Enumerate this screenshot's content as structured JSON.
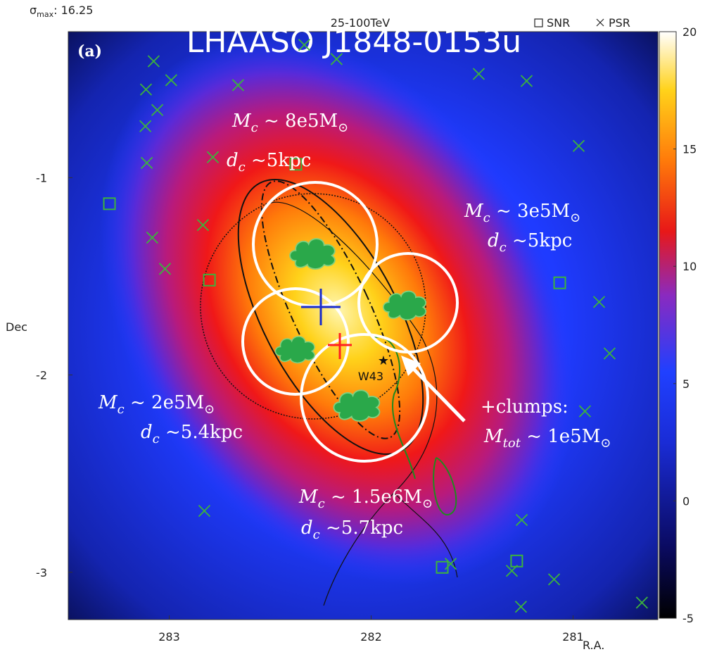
{
  "chart_data": {
    "type": "scatter",
    "title": "LHAASO J1848-0153u",
    "subtitle": "25-100TeV",
    "sigma_label": [
      "σ",
      "max",
      ": 16.25"
    ],
    "panel_label": "(a)",
    "x_label": "R.A.",
    "y_label": "Dec",
    "xlim": [
      283.5,
      280.58
    ],
    "ylim": [
      -3.24,
      -0.26
    ],
    "xticks": [
      283,
      282,
      281
    ],
    "yticks": [
      -1,
      -2,
      -3
    ],
    "legend": "upper right",
    "colorbar": {
      "lim": [
        -5,
        20
      ],
      "ticks": [
        -5,
        0,
        5,
        10,
        15,
        20
      ]
    },
    "series": [
      {
        "name": "SNR",
        "marker": "square",
        "color": "#3cb43c",
        "x": [
          283.296,
          282.801,
          282.373,
          281.066,
          281.648,
          281.279
        ],
        "y": [
          -1.132,
          -1.519,
          -0.932,
          -1.533,
          -2.975,
          -2.943
        ]
      },
      {
        "name": "PSR",
        "marker": "x",
        "color": "#3cb43c",
        "x": [
          283.077,
          282.99,
          283.115,
          283.059,
          283.118,
          283.111,
          282.784,
          282.833,
          283.084,
          283.021,
          282.659,
          282.331,
          282.171,
          281.467,
          281.23,
          280.972,
          280.871,
          280.819,
          280.941,
          282.826,
          281.254,
          281.303,
          281.094,
          281.258,
          280.659,
          281.606
        ],
        "y": [
          -0.41,
          -0.506,
          -0.553,
          -0.657,
          -0.739,
          -0.925,
          -0.896,
          -1.24,
          -1.304,
          -1.462,
          -0.531,
          -0.327,
          -0.399,
          -0.474,
          -0.51,
          -0.839,
          -1.63,
          -1.891,
          -2.184,
          -2.689,
          -2.735,
          -2.993,
          -3.036,
          -3.175,
          -3.154,
          -2.957
        ]
      }
    ],
    "annotations": [
      [
        "M",
        "c",
        " ~ 8e5M",
        "⊙"
      ],
      [
        "d",
        "c",
        " ~5kpc"
      ],
      [
        "M",
        "c",
        " ~ 3e5M",
        "⊙"
      ],
      [
        "d",
        "c",
        " ~5kpc"
      ],
      [
        "M",
        "c",
        " ~ 2e5M",
        "⊙"
      ],
      [
        "d",
        "c",
        " ~5.4kpc"
      ],
      [
        "+clumps:"
      ],
      [
        "M",
        "tot",
        " ~ 1e5M",
        "⊙"
      ],
      [
        "M",
        "c",
        " ~ 1.5e6M",
        "⊙"
      ],
      [
        "d",
        "c",
        " ~5.7kpc"
      ],
      [
        "W43"
      ]
    ]
  }
}
